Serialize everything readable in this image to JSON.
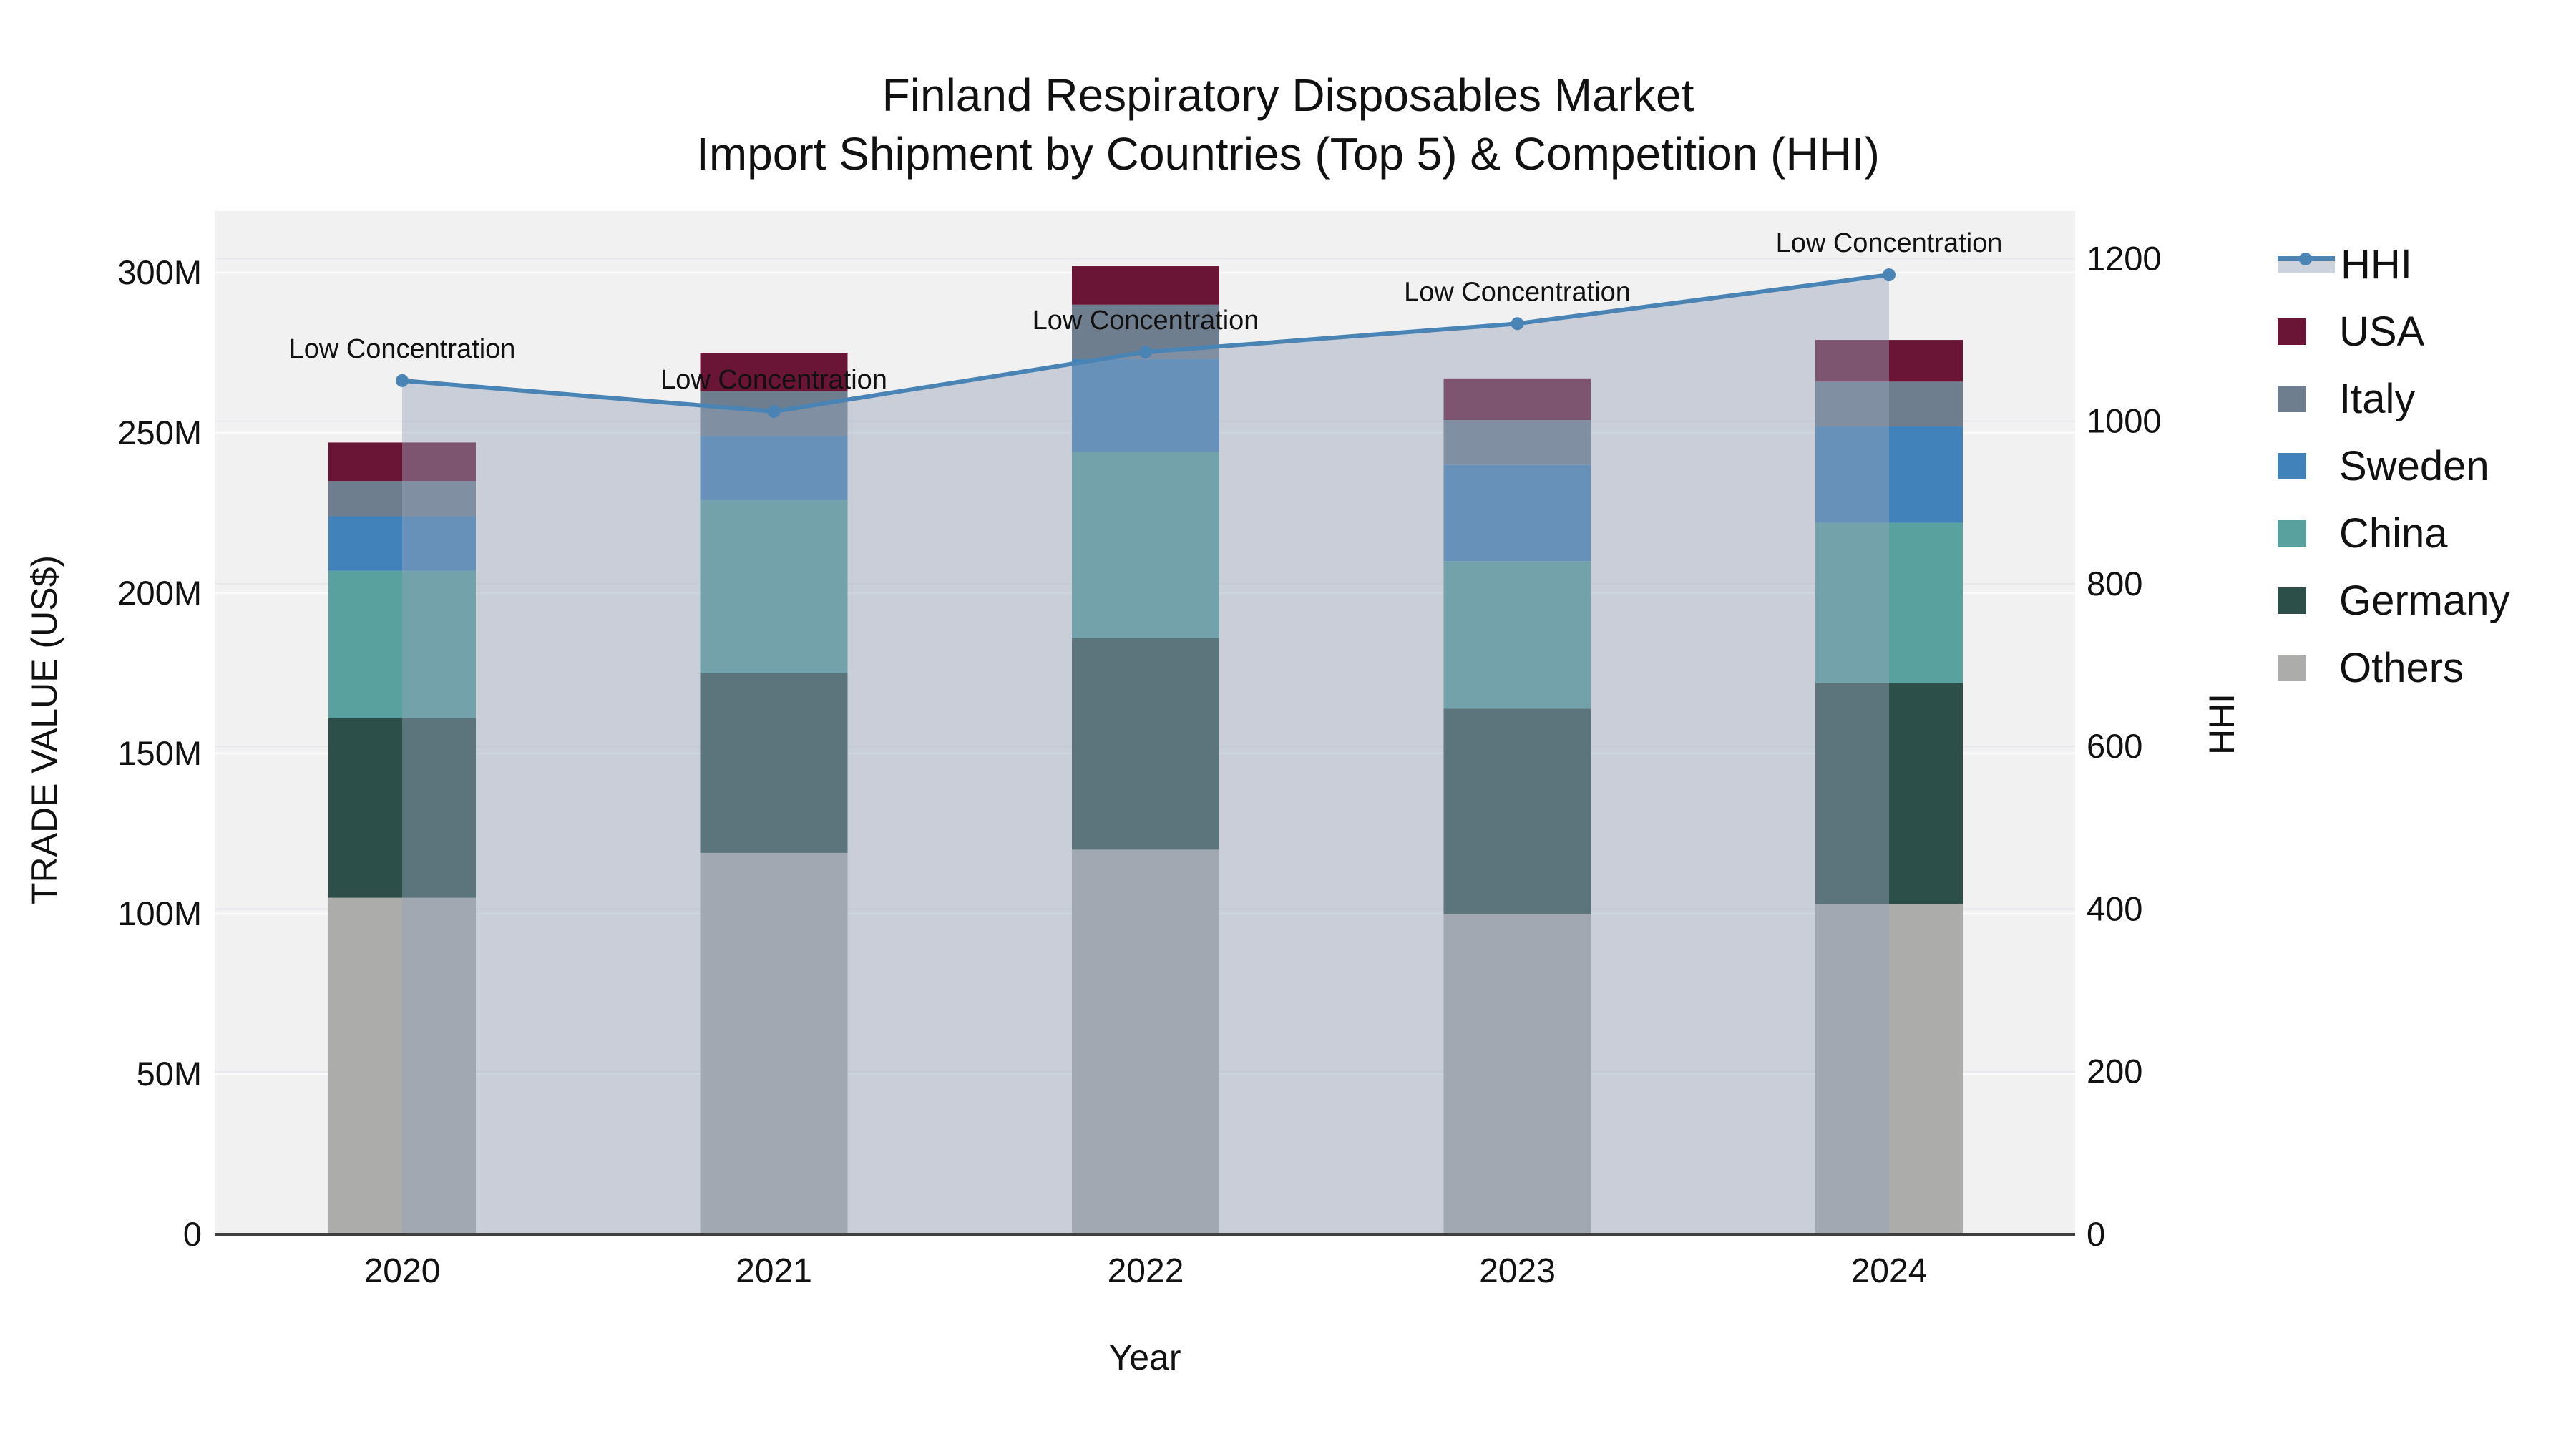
{
  "title": {
    "line1": "Finland Respiratory Disposables Market",
    "line2": "Import Shipment by Countries (Top 5) & Competition (HHI)"
  },
  "axes": {
    "x_title": "Year",
    "y_left_title": "TRADE VALUE (US$)",
    "y_right_title": "HHI",
    "left_ticks": [
      "0",
      "50M",
      "100M",
      "150M",
      "200M",
      "250M",
      "300M"
    ],
    "left_tick_values": [
      0,
      50,
      100,
      150,
      200,
      250,
      300
    ],
    "right_ticks": [
      "0",
      "200",
      "400",
      "600",
      "800",
      "1000",
      "1200"
    ],
    "right_tick_values": [
      0,
      200,
      400,
      600,
      800,
      1000,
      1200
    ]
  },
  "legend": {
    "items": [
      {
        "label": "HHI",
        "type": "line",
        "color": "#4a84b5",
        "band": "#ccd3dd"
      },
      {
        "label": "USA",
        "type": "swatch",
        "color": "#6a1535"
      },
      {
        "label": "Italy",
        "type": "swatch",
        "color": "#6f7e8e"
      },
      {
        "label": "Sweden",
        "type": "swatch",
        "color": "#4282ba"
      },
      {
        "label": "China",
        "type": "swatch",
        "color": "#58a19f"
      },
      {
        "label": "Germany",
        "type": "swatch",
        "color": "#2d4f4a"
      },
      {
        "label": "Others",
        "type": "swatch",
        "color": "#acacaa"
      }
    ]
  },
  "chart_data": {
    "type": "bar",
    "subtype": "stacked-bars-with-line",
    "title": "Finland Respiratory Disposables Market — Import Shipment by Countries (Top 5) & Competition (HHI)",
    "categories": [
      "2020",
      "2021",
      "2022",
      "2023",
      "2024"
    ],
    "xlabel": "Year",
    "ylabel": "TRADE VALUE (US$)",
    "ylabel_right": "HHI",
    "ylim": [
      0,
      300
    ],
    "ylim_right": [
      0,
      1200
    ],
    "unit": "USD millions",
    "grid": true,
    "legend_position": "right",
    "series": [
      {
        "name": "Others",
        "color": "#acacaa",
        "values": [
          105,
          119,
          120,
          100,
          103
        ]
      },
      {
        "name": "Germany",
        "color": "#2d4f4a",
        "values": [
          56,
          56,
          66,
          64,
          69
        ]
      },
      {
        "name": "China",
        "color": "#58a19f",
        "values": [
          46,
          54,
          58,
          46,
          50
        ]
      },
      {
        "name": "Sweden",
        "color": "#4282ba",
        "values": [
          17,
          20,
          29,
          30,
          30
        ]
      },
      {
        "name": "Italy",
        "color": "#6f7e8e",
        "values": [
          11,
          14,
          17,
          14,
          14
        ]
      },
      {
        "name": "USA",
        "color": "#6a1535",
        "values": [
          12,
          12,
          12,
          13,
          13
        ]
      }
    ],
    "stack_totals": [
      247,
      275,
      302,
      267,
      279
    ],
    "line_series": {
      "name": "HHI",
      "color": "#4a84b5",
      "fill_color": "rgba(150,165,186,0.45)",
      "values": [
        1050,
        1012,
        1085,
        1120,
        1180
      ]
    },
    "annotations": [
      "Low Concentration",
      "Low Concentration",
      "Low Concentration",
      "Low Concentration",
      "Low Concentration"
    ]
  },
  "colors": {
    "plot_background": "#f2f1f2",
    "axis_line": "#3f3f3f",
    "grid_left": "#fbfbfb",
    "grid_right": "#e7e8eb",
    "text": "#111111"
  }
}
